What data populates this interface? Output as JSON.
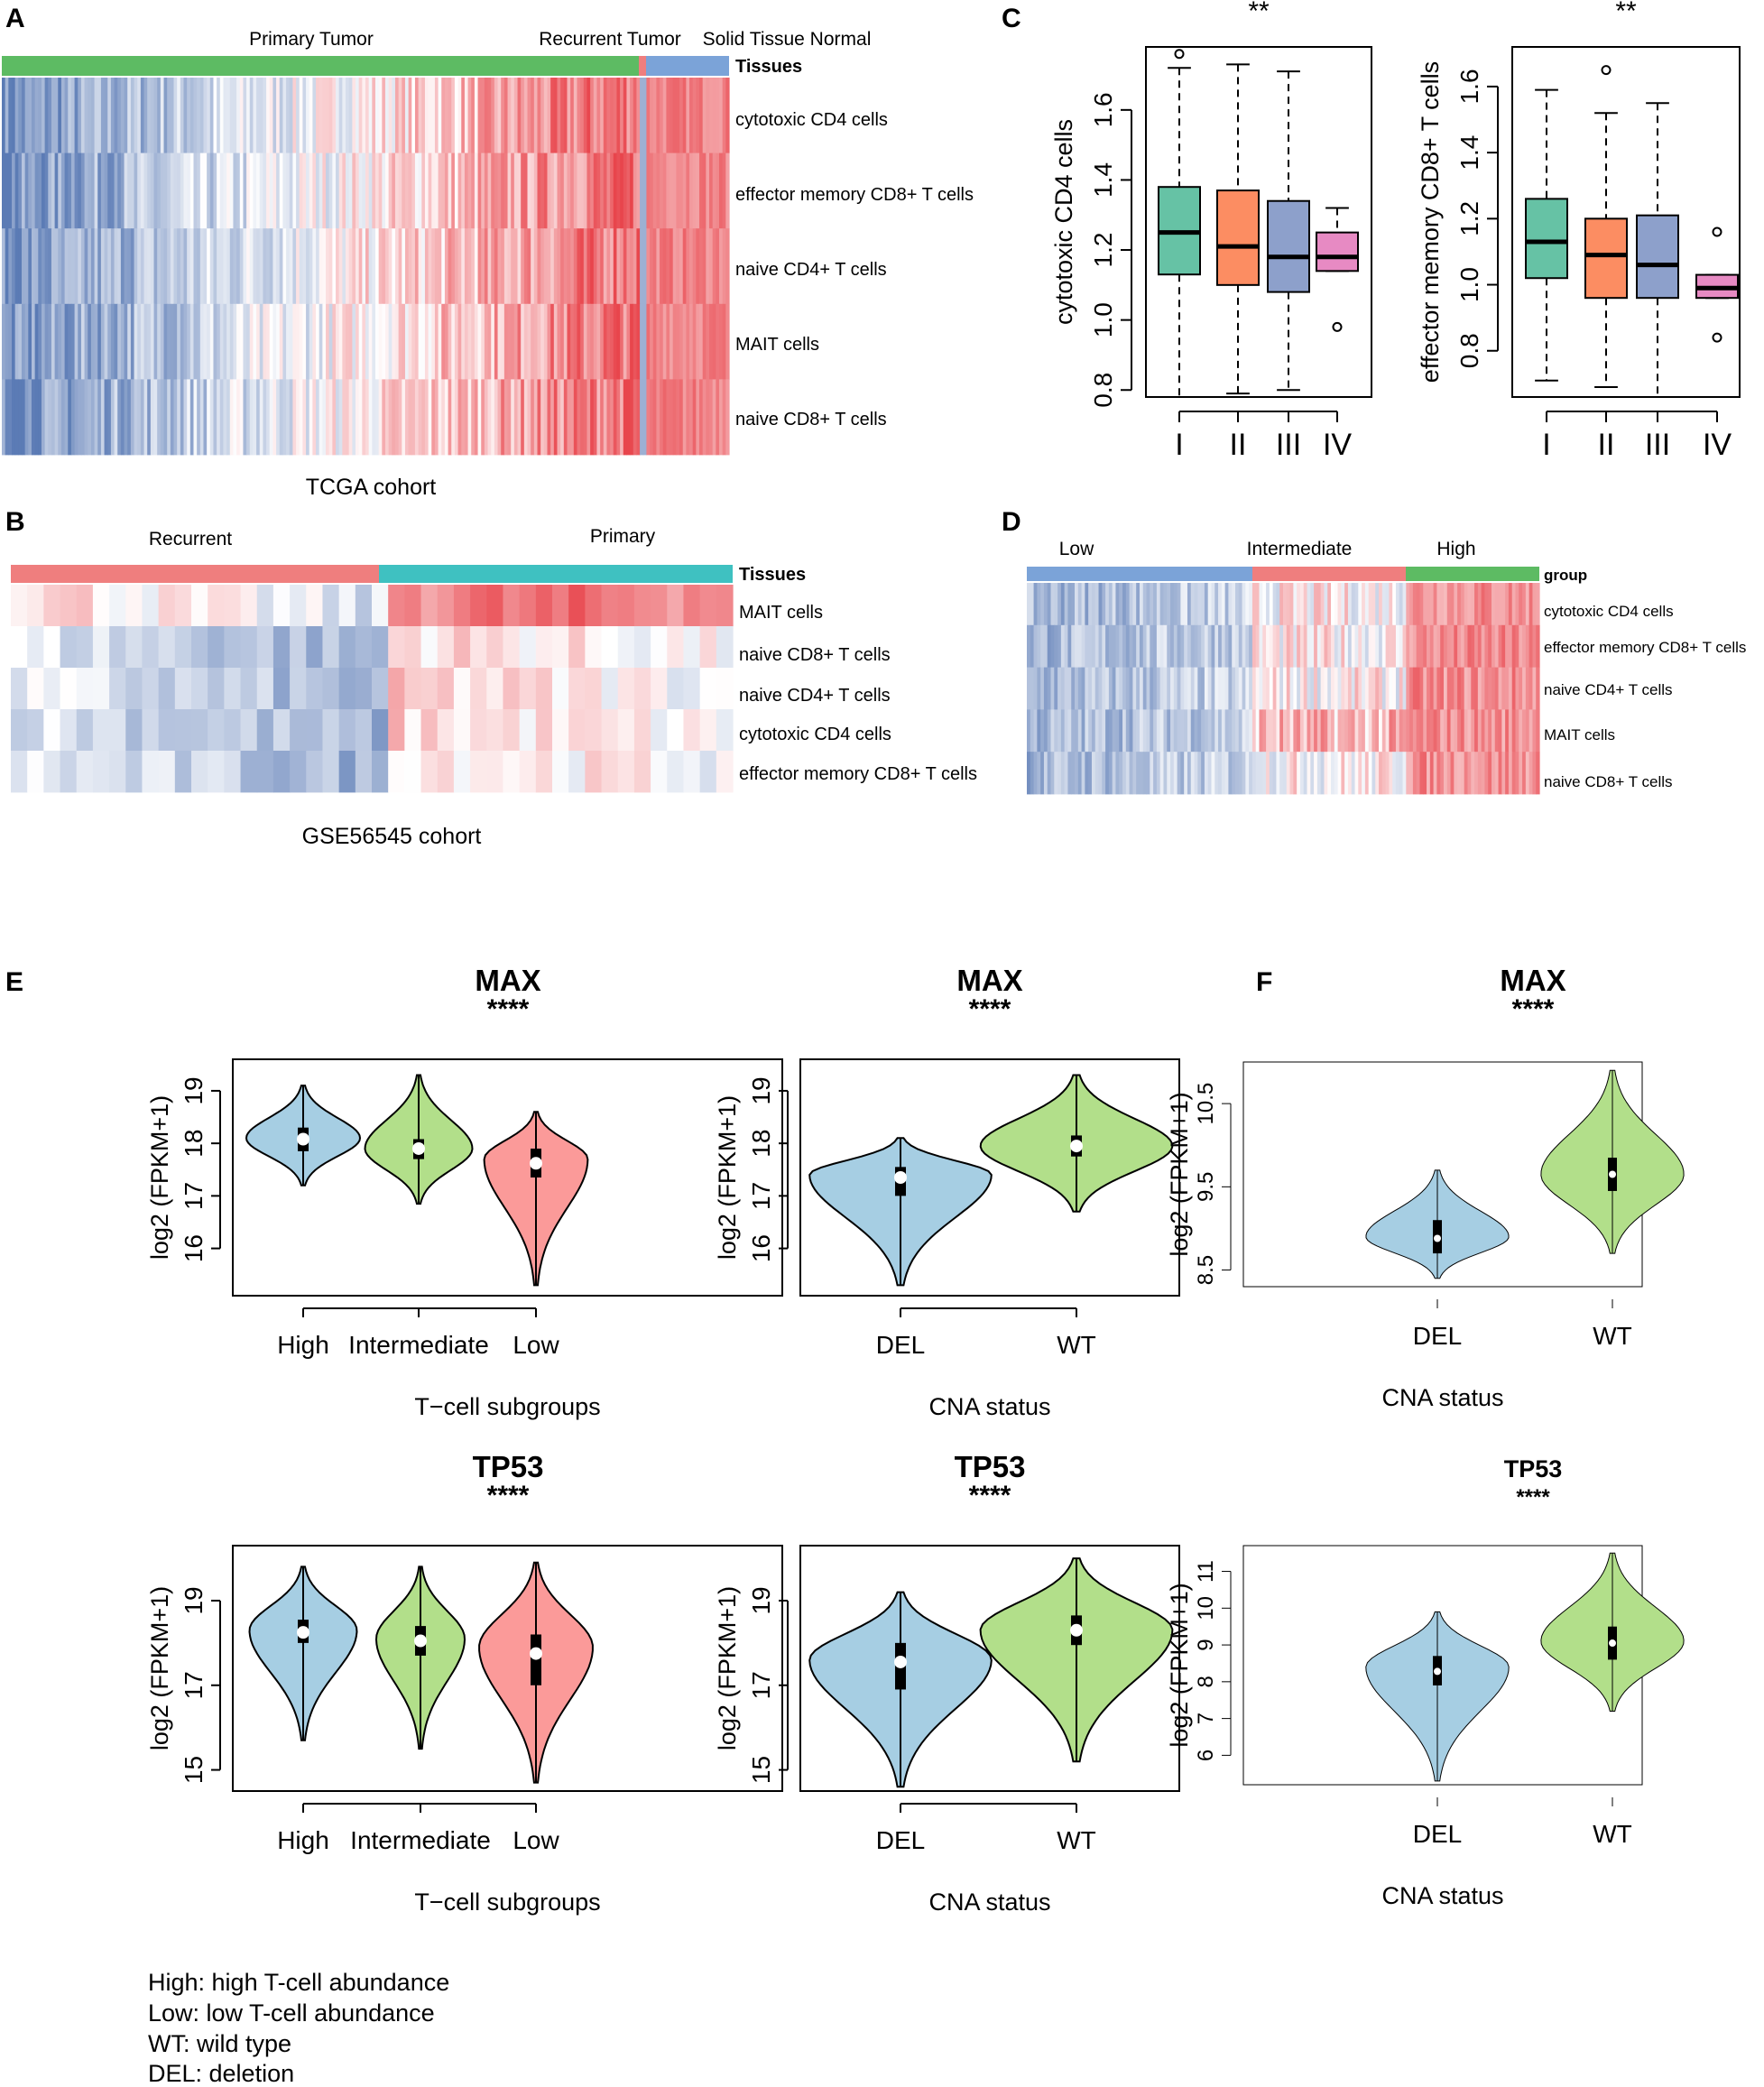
{
  "panels": {
    "A": "A",
    "B": "B",
    "C": "C",
    "D": "D",
    "E": "E",
    "F": "F"
  },
  "colors": {
    "green": "#5dbb63",
    "red": "#ef7e7e",
    "blue": "#7ba3d8",
    "teal": "#3fc1c1",
    "hm_low": "#5b7bb5",
    "hm_high": "#e8454c",
    "boxI": "#66c2a5",
    "boxII": "#fc8d62",
    "boxIII": "#8da0cb",
    "boxIV": "#e78ac3",
    "v_blue": "#a6cee3",
    "v_green": "#b2df8a",
    "v_red": "#fb9a99"
  },
  "heatmapA": {
    "groups": [
      "Primary Tumor",
      "Recurrent Tumor",
      "Solid Tissue Normal"
    ],
    "annotation_label": "Tissues",
    "rows": [
      "cytotoxic CD4 cells",
      "effector memory CD8+ T cells",
      "naive CD4+ T cells",
      "MAIT cells",
      "naive CD8+ T cells"
    ],
    "caption": "TCGA cohort"
  },
  "heatmapB": {
    "groups": [
      "Recurrent",
      "Primary"
    ],
    "annotation_label": "Tissues",
    "rows": [
      "MAIT cells",
      "naive CD8+ T cells",
      "naive CD4+ T cells",
      "cytotoxic CD4 cells",
      "effector memory CD8+ T cells"
    ],
    "caption": "GSE56545 cohort"
  },
  "heatmapD": {
    "groups": [
      "Low",
      "Intermediate",
      "High"
    ],
    "annotation_label": "group",
    "rows": [
      "cytotoxic CD4 cells",
      "effector memory CD8+ T cells",
      "naive CD4+ T cells",
      "MAIT cells",
      "naive CD8+ T cells"
    ]
  },
  "chart_data": [
    {
      "id": "C1",
      "type": "box",
      "sig": "**",
      "ylabel": "cytotoxic CD4 cells",
      "categories": [
        "I",
        "II",
        "III",
        "IV"
      ],
      "yticks": [
        "0.8",
        "1.0",
        "1.2",
        "1.4",
        "1.6"
      ],
      "ylim": [
        0.78,
        1.78
      ],
      "boxes": [
        {
          "min": 0.78,
          "q1": 1.13,
          "med": 1.25,
          "q3": 1.38,
          "max": 1.72,
          "out": [
            1.76
          ]
        },
        {
          "min": 0.79,
          "q1": 1.1,
          "med": 1.21,
          "q3": 1.37,
          "max": 1.73,
          "out": []
        },
        {
          "min": 0.8,
          "q1": 1.08,
          "med": 1.18,
          "q3": 1.34,
          "max": 1.71,
          "out": []
        },
        {
          "min": 1.14,
          "q1": 1.14,
          "med": 1.18,
          "q3": 1.25,
          "max": 1.32,
          "out": [
            0.98
          ]
        }
      ]
    },
    {
      "id": "C2",
      "type": "box",
      "sig": "**",
      "ylabel": "effector memory CD8+ T cells",
      "categories": [
        "I",
        "II",
        "III",
        "IV"
      ],
      "yticks": [
        "0.8",
        "1.0",
        "1.2",
        "1.4",
        "1.6"
      ],
      "ylim": [
        0.66,
        1.72
      ],
      "boxes": [
        {
          "min": 0.71,
          "q1": 1.02,
          "med": 1.13,
          "q3": 1.26,
          "max": 1.59,
          "out": []
        },
        {
          "min": 0.69,
          "q1": 0.96,
          "med": 1.09,
          "q3": 1.2,
          "max": 1.52,
          "out": [
            1.65
          ]
        },
        {
          "min": 0.66,
          "q1": 0.96,
          "med": 1.06,
          "q3": 1.21,
          "max": 1.55,
          "out": []
        },
        {
          "min": 0.96,
          "q1": 0.96,
          "med": 0.99,
          "q3": 1.03,
          "max": 1.03,
          "out": [
            1.16,
            0.84
          ]
        }
      ]
    },
    {
      "id": "E1",
      "type": "violin",
      "title": "MAX",
      "sig": "****",
      "ylabel": "log2 (FPKM+1)",
      "xlabel": "T−cell subgroups",
      "categories": [
        "High",
        "Intermediate",
        "Low"
      ],
      "yticks": [
        "16",
        "17",
        "18",
        "19"
      ],
      "ylim": [
        15.1,
        19.6
      ],
      "violins": [
        {
          "color": "#a6cee3",
          "min": 17.2,
          "max": 19.1,
          "q1": 17.85,
          "med": 18.08,
          "q3": 18.3,
          "peak": 18.1,
          "w": 0.9
        },
        {
          "color": "#b2df8a",
          "min": 16.85,
          "max": 19.3,
          "q1": 17.7,
          "med": 17.9,
          "q3": 18.08,
          "peak": 17.9,
          "w": 0.85
        },
        {
          "color": "#fb9a99",
          "min": 15.3,
          "max": 18.6,
          "q1": 17.35,
          "med": 17.62,
          "q3": 17.9,
          "peak": 17.7,
          "w": 0.82
        }
      ]
    },
    {
      "id": "E2",
      "type": "violin",
      "title": "MAX",
      "sig": "****",
      "ylabel": "log2 (FPKM+1)",
      "xlabel": "CNA status",
      "categories": [
        "DEL",
        "WT"
      ],
      "yticks": [
        "16",
        "17",
        "18",
        "19"
      ],
      "ylim": [
        15.1,
        19.6
      ],
      "violins": [
        {
          "color": "#a6cee3",
          "min": 15.3,
          "max": 18.1,
          "q1": 17.0,
          "med": 17.35,
          "q3": 17.55,
          "peak": 17.4,
          "w": 0.9
        },
        {
          "color": "#b2df8a",
          "min": 16.7,
          "max": 19.3,
          "q1": 17.75,
          "med": 17.95,
          "q3": 18.15,
          "peak": 17.95,
          "w": 0.95
        }
      ]
    },
    {
      "id": "F1",
      "type": "violin",
      "title": "MAX",
      "sig": "****",
      "ylabel": "log2 (FPKM+1)",
      "xlabel": "CNA status",
      "categories": [
        "DEL",
        "WT"
      ],
      "yticks": [
        "8.5",
        "9.5",
        "10.5"
      ],
      "ylim": [
        8.3,
        11.0
      ],
      "violins": [
        {
          "color": "#a6cee3",
          "min": 8.4,
          "max": 9.7,
          "q1": 8.7,
          "med": 8.88,
          "q3": 9.1,
          "peak": 8.9,
          "w": 0.9
        },
        {
          "color": "#b2df8a",
          "min": 8.7,
          "max": 10.9,
          "q1": 9.45,
          "med": 9.65,
          "q3": 9.85,
          "peak": 9.65,
          "w": 0.9
        }
      ]
    },
    {
      "id": "E3",
      "type": "violin",
      "title": "TP53",
      "sig": "****",
      "ylabel": "log2 (FPKM+1)",
      "xlabel": "T−cell subgroups",
      "categories": [
        "High",
        "Intermediate",
        "Low"
      ],
      "yticks": [
        "15",
        "17",
        "19"
      ],
      "ylim": [
        14.5,
        20.3
      ],
      "violins": [
        {
          "color": "#a6cee3",
          "min": 15.7,
          "max": 19.8,
          "q1": 18.0,
          "med": 18.25,
          "q3": 18.55,
          "peak": 18.3,
          "w": 0.85
        },
        {
          "color": "#b2df8a",
          "min": 15.5,
          "max": 19.8,
          "q1": 17.7,
          "med": 18.05,
          "q3": 18.4,
          "peak": 18.1,
          "w": 0.7
        },
        {
          "color": "#fb9a99",
          "min": 14.7,
          "max": 19.9,
          "q1": 17.0,
          "med": 17.75,
          "q3": 18.2,
          "peak": 17.9,
          "w": 0.9
        }
      ]
    },
    {
      "id": "E4",
      "type": "violin",
      "title": "TP53",
      "sig": "****",
      "ylabel": "log2 (FPKM+1)",
      "xlabel": "CNA status",
      "categories": [
        "DEL",
        "WT"
      ],
      "yticks": [
        "15",
        "17",
        "19"
      ],
      "ylim": [
        14.5,
        20.3
      ],
      "violins": [
        {
          "color": "#a6cee3",
          "min": 14.6,
          "max": 19.2,
          "q1": 16.9,
          "med": 17.55,
          "q3": 18.0,
          "peak": 17.6,
          "w": 0.9
        },
        {
          "color": "#b2df8a",
          "min": 15.2,
          "max": 20.0,
          "q1": 17.95,
          "med": 18.3,
          "q3": 18.65,
          "peak": 18.3,
          "w": 0.95
        }
      ]
    },
    {
      "id": "F2",
      "type": "violin",
      "title": "TP53",
      "sig": "****",
      "ylabel": "log2 (FPKM+1)",
      "xlabel": "CNA status",
      "categories": [
        "DEL",
        "WT"
      ],
      "yticks": [
        "6",
        "7",
        "8",
        "9",
        "10",
        "11"
      ],
      "ylim": [
        5.2,
        11.7
      ],
      "violins": [
        {
          "color": "#a6cee3",
          "min": 5.3,
          "max": 9.9,
          "q1": 7.9,
          "med": 8.28,
          "q3": 8.7,
          "peak": 8.4,
          "w": 0.9
        },
        {
          "color": "#b2df8a",
          "min": 7.2,
          "max": 11.5,
          "q1": 8.6,
          "med": 9.05,
          "q3": 9.5,
          "peak": 9.1,
          "w": 0.9
        }
      ]
    }
  ],
  "legend": [
    "High: high T-cell abundance",
    "Low: low T-cell abundance",
    "WT: wild type",
    "DEL: deletion"
  ]
}
